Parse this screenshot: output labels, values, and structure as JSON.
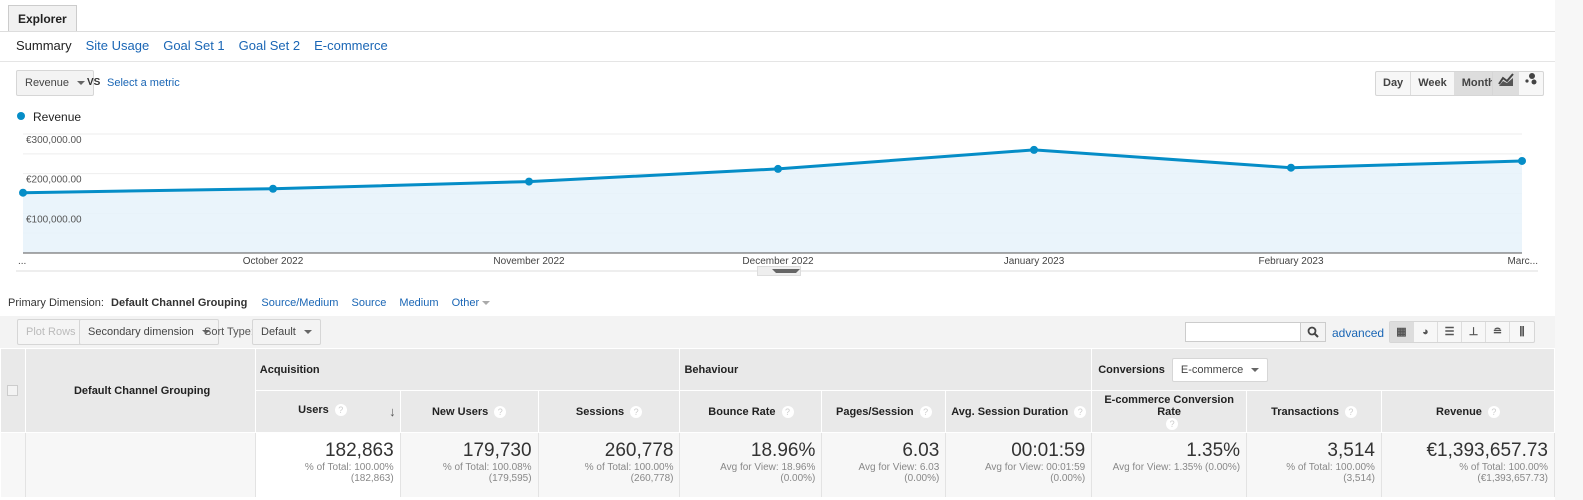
{
  "tab": {
    "label": "Explorer"
  },
  "nav": {
    "items": [
      "Summary",
      "Site Usage",
      "Goal Set 1",
      "Goal Set 2",
      "E-commerce"
    ]
  },
  "metric": {
    "selected": "Revenue",
    "vs": "VS",
    "select_metric": "Select a metric"
  },
  "period": {
    "buttons": [
      "Day",
      "Week",
      "Month"
    ],
    "active": "Month"
  },
  "chart_view": {
    "icons": [
      "line-chart-icon",
      "motion-chart-icon"
    ],
    "active": "line-chart-icon"
  },
  "colors": {
    "accent": "#058dc7",
    "fill": "#e6f2fa",
    "link": "#1a66b5"
  },
  "chart_data": {
    "type": "area",
    "legend": "Revenue",
    "legend_position": "top-left",
    "x_labels": [
      "...",
      "October 2022",
      "November 2022",
      "December 2022",
      "January 2023",
      "February 2023",
      "Marc..."
    ],
    "values": [
      152000,
      162000,
      180000,
      212000,
      260000,
      215000,
      232000
    ],
    "y_ticks": [
      "€100,000.00",
      "€200,000.00",
      "€300,000.00"
    ],
    "ylim": [
      0,
      300000
    ],
    "grid": true
  },
  "dimension": {
    "label": "Primary Dimension:",
    "active": "Default Channel Grouping",
    "options": [
      "Source/Medium",
      "Source",
      "Medium",
      "Other"
    ]
  },
  "toolbar": {
    "plot_rows": "Plot Rows",
    "secondary": "Secondary dimension",
    "sort_label": "Sort Type:",
    "sort_value": "Default",
    "search_value": "",
    "advanced": "advanced",
    "view_icons": [
      "grid-icon",
      "pie-icon",
      "bar-icon",
      "comparison-icon",
      "term-cloud-icon",
      "pivot-icon"
    ]
  },
  "table": {
    "dim_header": "Default Channel Grouping",
    "groups": {
      "acquisition": "Acquisition",
      "behaviour": "Behaviour",
      "conversions": "Conversions",
      "conv_select": "E-commerce"
    },
    "columns": [
      {
        "label": "Users",
        "value": "182,863",
        "sub1": "% of Total: 100.00%",
        "sub2": "(182,863)"
      },
      {
        "label": "New Users",
        "value": "179,730",
        "sub1": "% of Total: 100.08%",
        "sub2": "(179,595)"
      },
      {
        "label": "Sessions",
        "value": "260,778",
        "sub1": "% of Total: 100.00%",
        "sub2": "(260,778)"
      },
      {
        "label": "Bounce Rate",
        "value": "18.96%",
        "sub1": "Avg for View: 18.96%",
        "sub2": "(0.00%)"
      },
      {
        "label": "Pages/Session",
        "value": "6.03",
        "sub1": "Avg for View: 6.03",
        "sub2": "(0.00%)"
      },
      {
        "label": "Avg. Session Duration",
        "value": "00:01:59",
        "sub1": "Avg for View: 00:01:59",
        "sub2": "(0.00%)"
      },
      {
        "label": "E-commerce Conversion Rate",
        "value": "1.35%",
        "sub1": "Avg for View: 1.35% (0.00%)",
        "sub2": ""
      },
      {
        "label": "Transactions",
        "value": "3,514",
        "sub1": "% of Total: 100.00%",
        "sub2": "(3,514)"
      },
      {
        "label": "Revenue",
        "value": "€1,393,657.73",
        "sub1": "% of Total: 100.00%",
        "sub2": "(€1,393,657.73)"
      }
    ]
  }
}
